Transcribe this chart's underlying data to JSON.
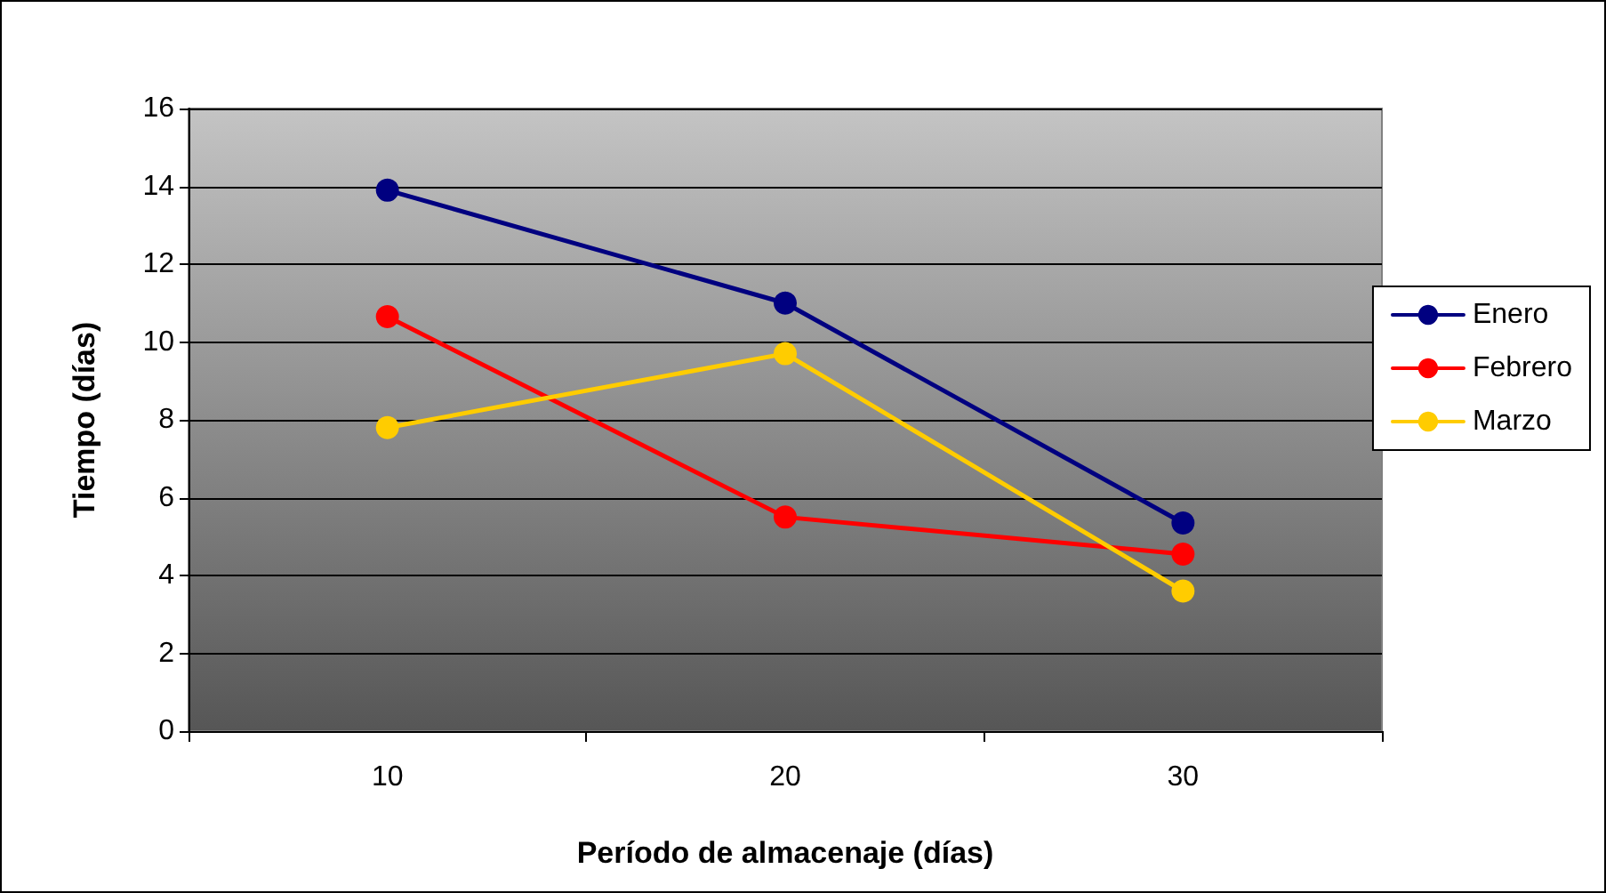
{
  "chart_data": {
    "type": "line",
    "xlabel": "Período de almacenaje (días)",
    "ylabel": "Tiempo (días)",
    "categories": [
      "10",
      "20",
      "30"
    ],
    "series": [
      {
        "name": "Enero",
        "color": "#000080",
        "values": [
          13.9,
          11.0,
          5.35
        ]
      },
      {
        "name": "Febrero",
        "color": "#ff0000",
        "values": [
          10.65,
          5.5,
          4.55
        ]
      },
      {
        "name": "Marzo",
        "color": "#ffcc00",
        "values": [
          7.8,
          9.7,
          3.6
        ]
      }
    ],
    "ylim": [
      0,
      16
    ],
    "yticks": [
      0,
      2,
      4,
      6,
      8,
      10,
      12,
      14,
      16
    ],
    "grid": "y",
    "legend": "right",
    "marker": "circle",
    "line_style": "solid"
  }
}
